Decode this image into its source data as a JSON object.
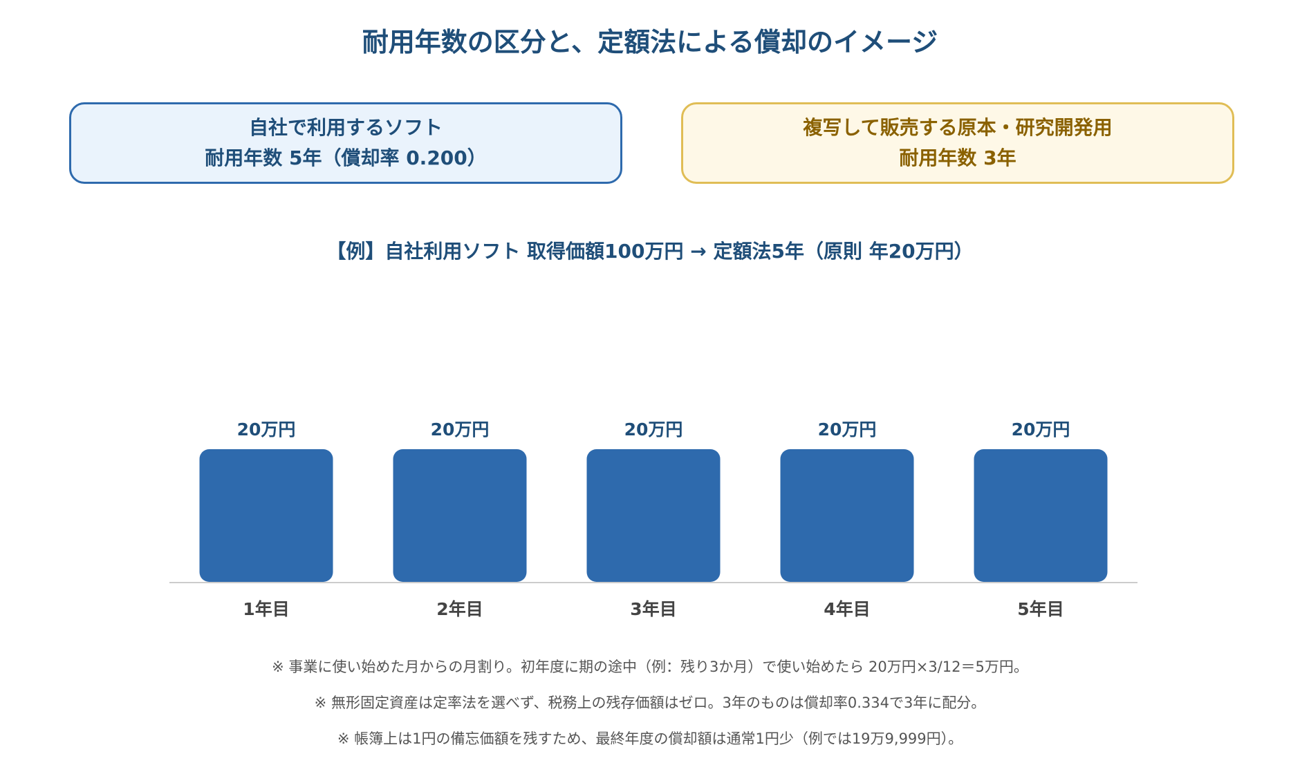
{
  "title": "耐用年数の区分と、定額法による償却のイメージ",
  "categories_box": {
    "left": {
      "line1": "自社で利用するソフト",
      "line2": "耐用年数 5年（償却率 0.200）",
      "border_color": "#2e6aad",
      "fill_color": "#eaf3fc"
    },
    "right": {
      "line1": "複写して販売する原本・研究開発用",
      "line2": "耐用年数 3年",
      "border_color": "#e0bd55",
      "fill_color": "#fef8e7"
    }
  },
  "example_label": "【例】自社利用ソフト 取得価額100万円 → 定額法5年（原則 年20万円）",
  "chart_data": {
    "type": "bar",
    "categories": [
      "1年目",
      "2年目",
      "3年目",
      "4年目",
      "5年目"
    ],
    "values": [
      20,
      20,
      20,
      20,
      20
    ],
    "value_labels": [
      "20万円",
      "20万円",
      "20万円",
      "20万円",
      "20万円"
    ],
    "unit": "万円",
    "ylim": [
      0,
      20
    ],
    "bar_color": "#2e6aad",
    "axis_color": "#cccccc",
    "grid": false
  },
  "notes": [
    "※ 事業に使い始めた月からの月割り。初年度に期の途中（例：残り3か月）で使い始めたら 20万円×3/12＝5万円。",
    "※ 無形固定資産は定率法を選べず、税務上の残存価額はゼロ。3年のものは償却率0.334で3年に配分。",
    "※ 帳簿上は1円の備忘価額を残すため、最終年度の償却額は通常1円少（例では19万9,999円）。"
  ]
}
